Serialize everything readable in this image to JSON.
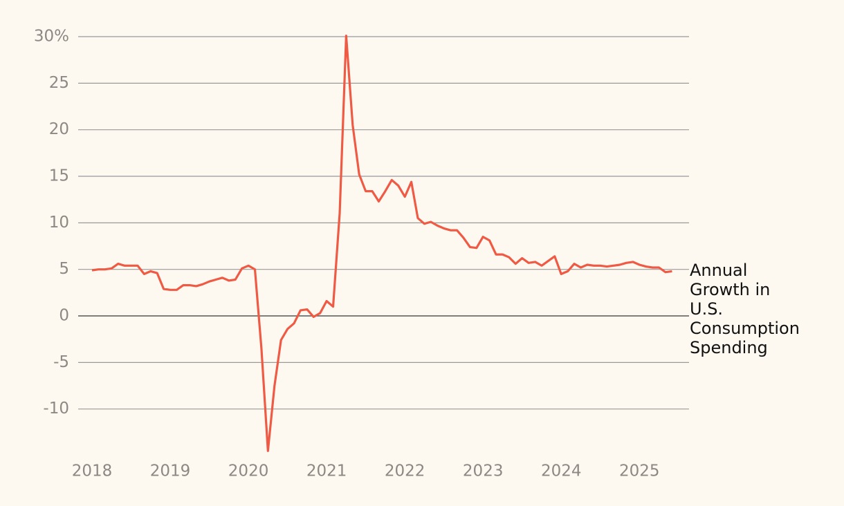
{
  "chart_data": {
    "type": "line",
    "categories": [
      "2018",
      null,
      null,
      null,
      null,
      null,
      null,
      null,
      null,
      null,
      null,
      null,
      "2019",
      null,
      null,
      null,
      null,
      null,
      null,
      null,
      null,
      null,
      null,
      null,
      "2020",
      null,
      null,
      null,
      null,
      null,
      null,
      null,
      null,
      null,
      null,
      null,
      "2021",
      null,
      null,
      null,
      null,
      null,
      null,
      null,
      null,
      null,
      null,
      null,
      "2022",
      null,
      null,
      null,
      null,
      null,
      null,
      null,
      null,
      null,
      null,
      null,
      "2023",
      null,
      null,
      null,
      null,
      null,
      null,
      null,
      null,
      null,
      null,
      null,
      "2024",
      null,
      null,
      null,
      null,
      null,
      null,
      null,
      null,
      null,
      null,
      null,
      "2025",
      null,
      null,
      null,
      null,
      null
    ],
    "series": [
      {
        "name": "Annual Growth in U.S. Consumption Spending",
        "color": "#ef5a45",
        "values": [
          4.9,
          5.0,
          5.0,
          5.1,
          5.6,
          5.4,
          5.4,
          5.4,
          4.5,
          4.8,
          4.6,
          2.9,
          2.8,
          2.8,
          3.3,
          3.3,
          3.2,
          3.4,
          3.7,
          3.9,
          4.1,
          3.8,
          3.9,
          5.1,
          5.4,
          5.0,
          -3.5,
          -14.5,
          -7.5,
          -2.6,
          -1.4,
          -0.8,
          0.6,
          0.7,
          -0.1,
          0.3,
          1.6,
          1.0,
          11.0,
          30.1,
          20.5,
          15.2,
          13.4,
          13.4,
          12.3,
          13.4,
          14.6,
          14.0,
          12.8,
          14.4,
          10.5,
          9.9,
          10.1,
          9.7,
          9.4,
          9.2,
          9.2,
          8.4,
          7.4,
          7.3,
          8.5,
          8.1,
          6.6,
          6.6,
          6.3,
          5.6,
          6.2,
          5.7,
          5.8,
          5.4,
          5.9,
          6.4,
          4.5,
          4.8,
          5.6,
          5.2,
          5.5,
          5.4,
          5.4,
          5.3,
          5.4,
          5.5,
          5.7,
          5.8,
          5.5,
          5.3,
          5.2,
          5.2,
          4.7,
          4.8
        ]
      }
    ],
    "ylim": [
      -14.7,
      30
    ],
    "yticks": [
      {
        "value": 30,
        "label": "30%"
      },
      25,
      20,
      15,
      10,
      5,
      0,
      -5,
      -10
    ],
    "grid": true
  }
}
